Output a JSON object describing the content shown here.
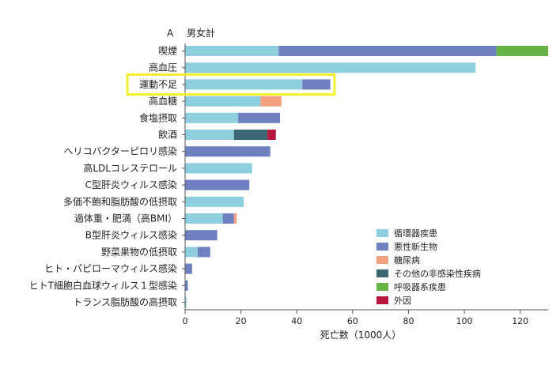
{
  "chart_data": {
    "type": "bar",
    "orientation": "horizontal",
    "stacked": true,
    "panel_label": "A",
    "title": "男女計",
    "xlabel": "死亡数（1000人）",
    "ylabel": "",
    "xlim": [
      0,
      130
    ],
    "xticks": [
      0,
      20,
      40,
      60,
      80,
      100,
      120
    ],
    "grid": false,
    "legend_position": "bottom-right",
    "highlighted_category": "運動不足",
    "categories": [
      "喫煙",
      "高血圧",
      "運動不足",
      "高血糖",
      "食塩摂取",
      "飲酒",
      "ヘリコバクターピロリ感染",
      "高LDLコレステロール",
      "C型肝炎ウィルス感染",
      "多価不飽和脂肪酸の低摂取",
      "過体重・肥満（高BMI）",
      "B型肝炎ウィルス感染",
      "野菜果物の低摂取",
      "ヒト・パピローマウィルス感染",
      "ヒトT細胞白血球ウィルス１型感染",
      "トランス脂肪酸の高摂取"
    ],
    "series": [
      {
        "name": "循環器疾患",
        "color": "#8dcfdf",
        "values": [
          33.5,
          104,
          42,
          27,
          19,
          17.5,
          0,
          24,
          0,
          21,
          13.5,
          0,
          4.5,
          0,
          0,
          0.5
        ]
      },
      {
        "name": "悪性新生物",
        "color": "#6f80c1",
        "values": [
          78,
          0,
          10,
          0,
          15,
          0,
          30.5,
          0,
          23,
          0,
          4,
          11.5,
          4.5,
          2.5,
          1,
          0
        ]
      },
      {
        "name": "糖尿病",
        "color": "#f4a182",
        "values": [
          0,
          0,
          0,
          7.5,
          0,
          0,
          0,
          0,
          0,
          0,
          1,
          0,
          0,
          0,
          0,
          0
        ]
      },
      {
        "name": "その他の非感染性疾病",
        "color": "#3c6673",
        "values": [
          0,
          0,
          0,
          0,
          0,
          12,
          0,
          0,
          0,
          0,
          0,
          0,
          0,
          0,
          0,
          0
        ]
      },
      {
        "name": "呼吸器系疾患",
        "color": "#66b446",
        "values": [
          18.5,
          0,
          0,
          0,
          0,
          0,
          0,
          0,
          0,
          0,
          0,
          0,
          0,
          0,
          0,
          0
        ]
      },
      {
        "name": "外因",
        "color": "#b5173d",
        "values": [
          0,
          0,
          0,
          0,
          0,
          3,
          0,
          0,
          0,
          0,
          0,
          0,
          0,
          0,
          0,
          0
        ]
      }
    ],
    "highlight_color": "#f2ef2e"
  }
}
